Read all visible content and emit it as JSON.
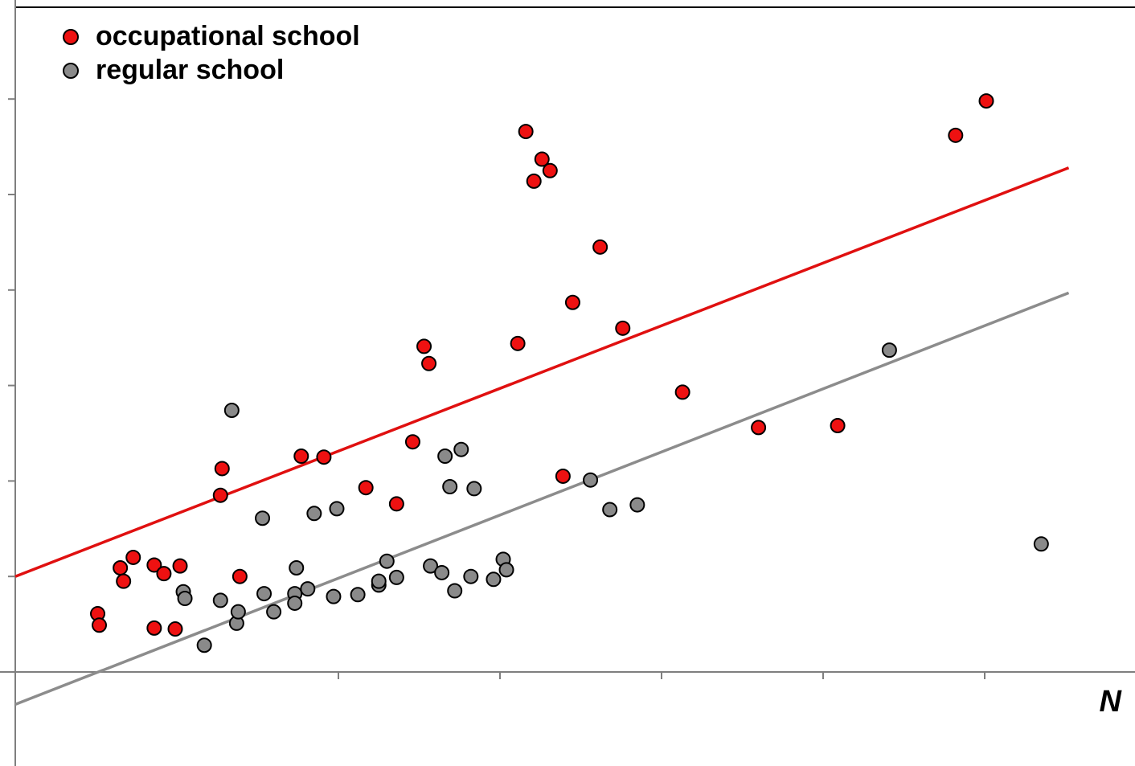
{
  "chart_data": {
    "type": "scatter",
    "xlabel": "N",
    "ylabel": "",
    "xlim": [
      -1,
      5.95
    ],
    "ylim": [
      -0.98,
      6.95
    ],
    "xticks": [
      0,
      1,
      2,
      3,
      4,
      5
    ],
    "yticks": [
      0,
      1,
      2,
      3,
      4,
      5,
      6
    ],
    "legend_position": "top-left",
    "series": [
      {
        "name": "occupational school",
        "color": "#ee1111",
        "trendline": {
          "x": [
            -1,
            5.52
          ],
          "y": [
            1.0,
            5.28
          ]
        },
        "points": [
          [
            -0.49,
            0.61
          ],
          [
            -0.48,
            0.49
          ],
          [
            -0.35,
            1.09
          ],
          [
            -0.33,
            0.95
          ],
          [
            -0.27,
            1.2
          ],
          [
            -0.14,
            1.12
          ],
          [
            -0.14,
            0.46
          ],
          [
            -0.08,
            1.03
          ],
          [
            -0.01,
            0.45
          ],
          [
            0.02,
            1.11
          ],
          [
            0.27,
            1.85
          ],
          [
            0.28,
            2.13
          ],
          [
            0.39,
            1.0
          ],
          [
            0.77,
            2.26
          ],
          [
            0.91,
            2.25
          ],
          [
            1.17,
            1.93
          ],
          [
            1.36,
            1.76
          ],
          [
            1.46,
            2.41
          ],
          [
            1.53,
            3.41
          ],
          [
            1.56,
            3.23
          ],
          [
            2.11,
            3.44
          ],
          [
            2.16,
            5.66
          ],
          [
            2.21,
            5.14
          ],
          [
            2.26,
            5.37
          ],
          [
            2.31,
            5.25
          ],
          [
            2.39,
            2.05
          ],
          [
            2.45,
            3.87
          ],
          [
            2.62,
            4.45
          ],
          [
            2.76,
            3.6
          ],
          [
            3.13,
            2.93
          ],
          [
            3.6,
            2.56
          ],
          [
            4.09,
            2.58
          ],
          [
            4.82,
            5.62
          ],
          [
            5.01,
            5.98
          ]
        ]
      },
      {
        "name": "regular school",
        "color": "#8a8a8a",
        "trendline": {
          "x": [
            -1,
            5.52
          ],
          "y": [
            -0.34,
            3.97
          ]
        },
        "points": [
          [
            0.04,
            0.84
          ],
          [
            0.05,
            0.77
          ],
          [
            0.17,
            0.28
          ],
          [
            0.27,
            0.75
          ],
          [
            0.34,
            2.74
          ],
          [
            0.37,
            0.51
          ],
          [
            0.38,
            0.63
          ],
          [
            0.53,
            1.61
          ],
          [
            0.54,
            0.82
          ],
          [
            0.6,
            0.63
          ],
          [
            0.73,
            0.82
          ],
          [
            0.73,
            0.72
          ],
          [
            0.74,
            1.09
          ],
          [
            0.81,
            0.87
          ],
          [
            0.85,
            1.66
          ],
          [
            0.97,
            0.79
          ],
          [
            0.99,
            1.71
          ],
          [
            1.12,
            0.81
          ],
          [
            1.25,
            0.91
          ],
          [
            1.25,
            0.95
          ],
          [
            1.3,
            1.16
          ],
          [
            1.36,
            0.99
          ],
          [
            1.57,
            1.11
          ],
          [
            1.64,
            1.04
          ],
          [
            1.66,
            2.26
          ],
          [
            1.69,
            1.94
          ],
          [
            1.72,
            0.85
          ],
          [
            1.76,
            2.33
          ],
          [
            1.82,
            1.0
          ],
          [
            1.84,
            1.92
          ],
          [
            1.96,
            0.97
          ],
          [
            2.02,
            1.18
          ],
          [
            2.04,
            1.07
          ],
          [
            2.56,
            2.01
          ],
          [
            2.68,
            1.7
          ],
          [
            2.85,
            1.75
          ],
          [
            4.41,
            3.37
          ],
          [
            5.35,
            1.34
          ]
        ]
      }
    ]
  }
}
